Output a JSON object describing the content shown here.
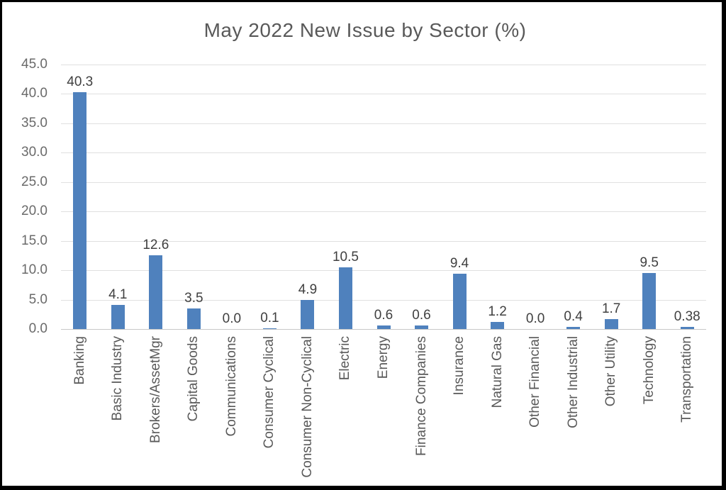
{
  "window": {
    "background_color": "#ffffff",
    "border_color": "#000000"
  },
  "chart_data": {
    "type": "bar",
    "title": "May 2022 New Issue by Sector (%)",
    "categories": [
      "Banking",
      "Basic Industry",
      "Brokers/AssetMgr",
      "Capital Goods",
      "Communications",
      "Consumer Cyclical",
      "Consumer Non-Cyclical",
      "Electric",
      "Energy",
      "Finance Companies",
      "Insurance",
      "Natural Gas",
      "Other Financial",
      "Other Industrial",
      "Other Utility",
      "Technology",
      "Transportation"
    ],
    "values": [
      40.3,
      4.1,
      12.6,
      3.5,
      0.0,
      0.1,
      4.9,
      10.5,
      0.6,
      0.6,
      9.4,
      1.2,
      0.0,
      0.4,
      1.7,
      9.5,
      0.38
    ],
    "value_labels": [
      "40.3",
      "4.1",
      "12.6",
      "3.5",
      "0.0",
      "0.1",
      "4.9",
      "10.5",
      "0.6",
      "0.6",
      "9.4",
      "1.2",
      "0.0",
      "0.4",
      "1.7",
      "9.5",
      "0.38"
    ],
    "xlabel": "",
    "ylabel": "",
    "ylim": [
      0,
      45
    ],
    "ytick_step": 5,
    "ytick_labels": [
      "0.0",
      "5.0",
      "10.0",
      "15.0",
      "20.0",
      "25.0",
      "30.0",
      "35.0",
      "40.0",
      "45.0"
    ],
    "grid": true,
    "legend_position": "none",
    "bar_color": "#4f81bd",
    "gridline_color": "#e0e0e0",
    "axis_line_color": "#c8c8c8",
    "title_color": "#595959",
    "tick_label_color": "#6a6a6a",
    "data_label_color": "#404040"
  }
}
